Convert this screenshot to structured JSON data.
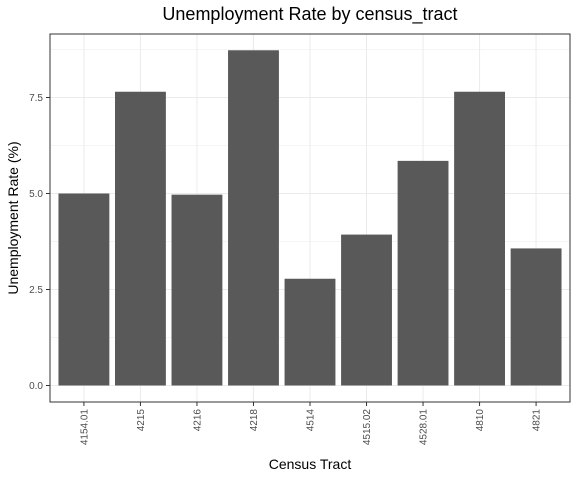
{
  "chart_data": {
    "type": "bar",
    "title": "Unemployment Rate by census_tract",
    "xlabel": "Census Tract",
    "ylabel": "Unemployment Rate (%)",
    "categories": [
      "4154.01",
      "4215",
      "4216",
      "4218",
      "4514",
      "4515.02",
      "4528.01",
      "4810",
      "4821"
    ],
    "values": [
      5.0,
      7.65,
      4.97,
      8.73,
      2.78,
      3.93,
      5.85,
      7.65,
      3.57
    ],
    "ylim": [
      0,
      9.1
    ],
    "yticks": [
      0,
      2.5,
      5,
      7.5
    ],
    "ytick_labels": [
      "0.0",
      "2.5",
      "5.0",
      "7.5"
    ],
    "grid": true,
    "bar_color": "#595959",
    "grid_color": "#ebebeb",
    "panel_border_color": "#333333"
  }
}
